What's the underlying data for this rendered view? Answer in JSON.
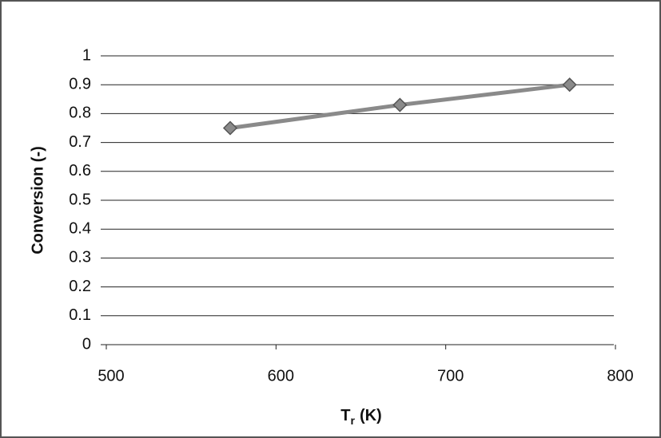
{
  "chart_data": {
    "type": "line",
    "ylabel": "Conversion (-)",
    "xlabel_parts": [
      "T",
      "r",
      "(K)"
    ],
    "x": [
      573,
      673,
      773
    ],
    "series": [
      {
        "color": "#8a8a8a",
        "values": [
          0.75,
          0.83,
          0.9
        ]
      }
    ],
    "xlim": [
      500,
      800
    ],
    "xticks": [
      500,
      600,
      700,
      800
    ],
    "ylim": [
      0,
      1
    ],
    "yticks": [
      0,
      0.1,
      0.2,
      0.3,
      0.4,
      0.5,
      0.6,
      0.7,
      0.8,
      0.9,
      1
    ],
    "grid": true
  }
}
